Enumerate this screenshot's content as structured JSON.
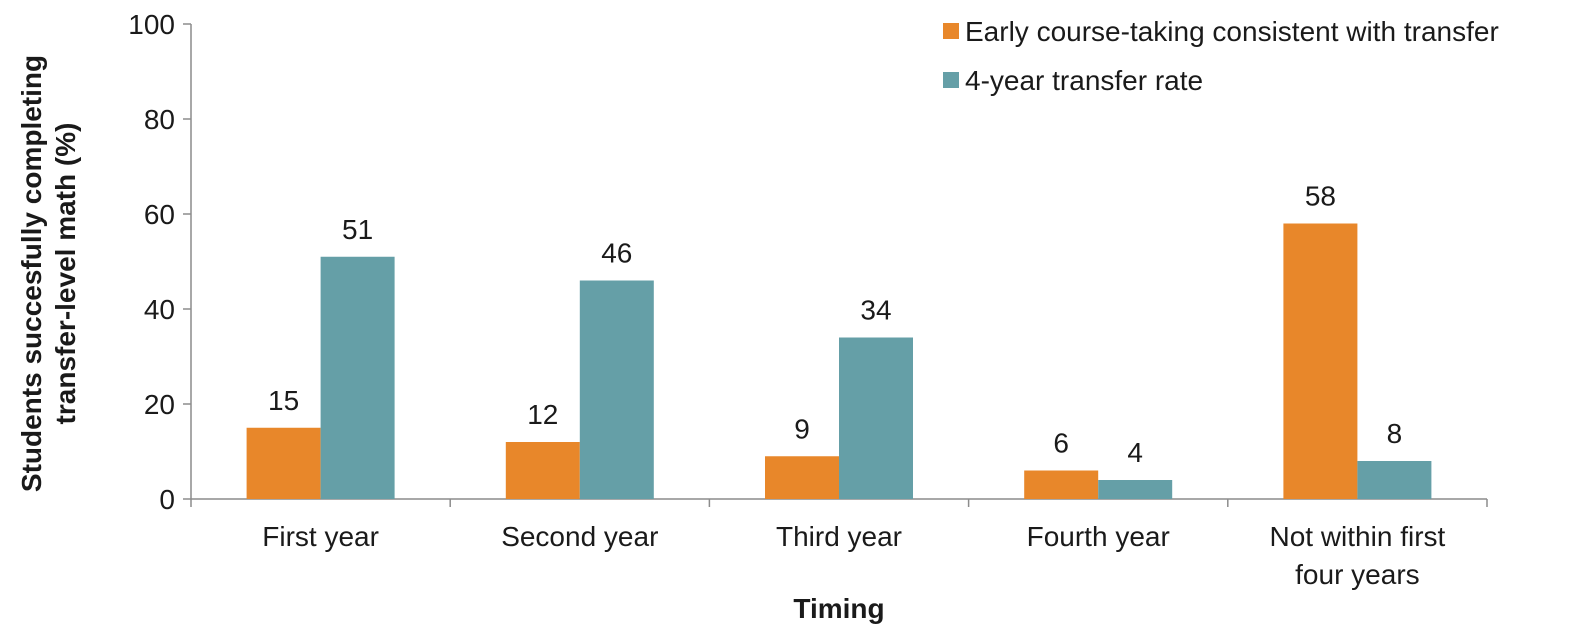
{
  "chart_data": {
    "type": "bar",
    "categories": [
      [
        "First year"
      ],
      [
        "Second year"
      ],
      [
        "Third year"
      ],
      [
        "Fourth year"
      ],
      [
        "Not within first",
        "four years"
      ]
    ],
    "series": [
      {
        "name": "Early course-taking consistent with transfer",
        "color": "#E8872A",
        "values": [
          15,
          12,
          9,
          6,
          58
        ]
      },
      {
        "name": "4-year transfer rate",
        "color": "#659FA7",
        "values": [
          51,
          46,
          34,
          4,
          8
        ]
      }
    ],
    "data_labels": [
      [
        "15",
        "12",
        "9",
        "6",
        "58"
      ],
      [
        "51",
        "46",
        "34",
        "4",
        "8"
      ]
    ],
    "xlabel": "Timing",
    "ylabel": [
      "Students succesfully completing",
      "transfer-level math (%)"
    ],
    "ylim": [
      0,
      100
    ],
    "yticks": [
      0,
      20,
      40,
      60,
      80,
      100
    ],
    "grid": false,
    "legend_position": "top-right"
  }
}
